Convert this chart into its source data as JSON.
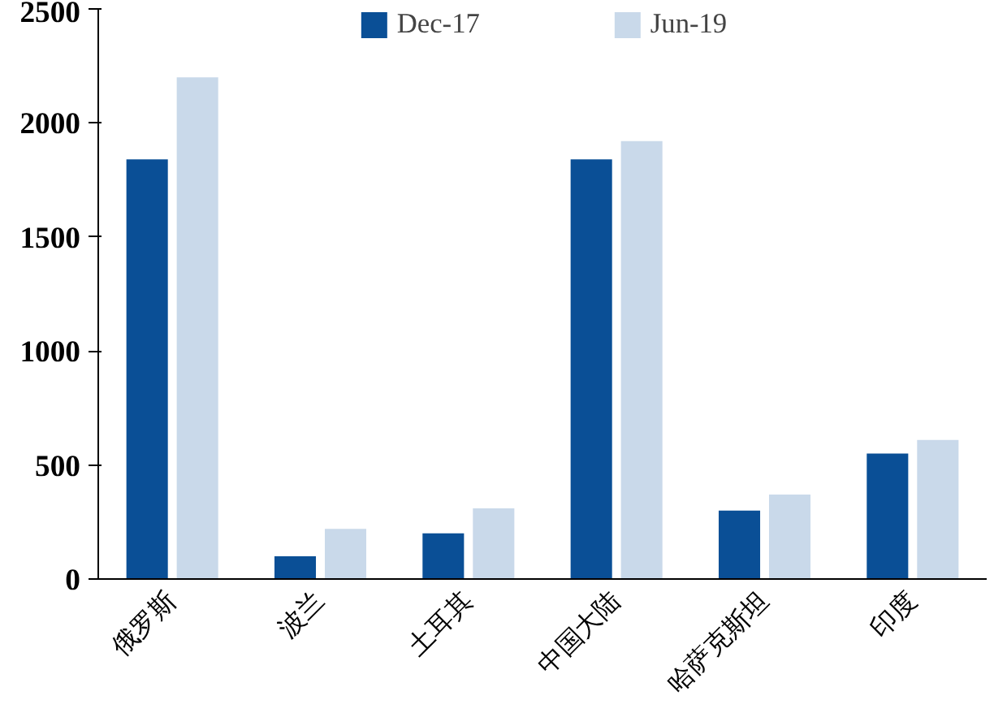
{
  "chart_data": {
    "type": "bar",
    "categories": [
      "俄罗斯",
      "波兰",
      "土耳其",
      "中国大陆",
      "哈萨克斯坦",
      "印度"
    ],
    "series": [
      {
        "name": "Dec-17",
        "color": "#0a4f96",
        "values": [
          1840,
          100,
          200,
          1840,
          300,
          550
        ]
      },
      {
        "name": "Jun-19",
        "color": "#c9d9ea",
        "values": [
          2200,
          220,
          310,
          1920,
          370,
          610
        ]
      }
    ],
    "ylim": [
      0,
      2500
    ],
    "yticks": [
      0,
      500,
      1000,
      1500,
      2000,
      2500
    ],
    "grid": false,
    "legend": "top"
  }
}
